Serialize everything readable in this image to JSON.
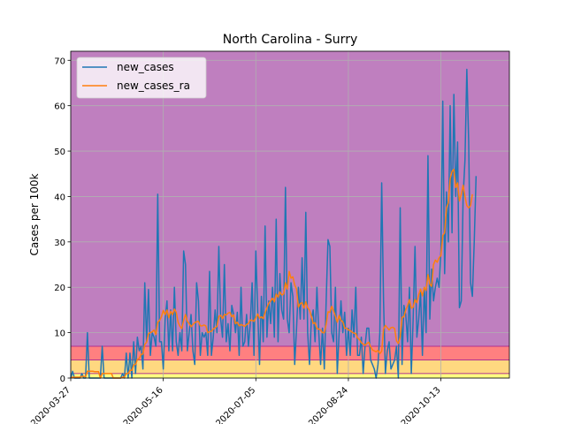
{
  "chart_data": {
    "type": "line",
    "title": "North Carolina - Surry",
    "xlabel": "",
    "ylabel": "Cases per 100k",
    "x_start": "2020-03-27",
    "x_end": "2020-11-05",
    "xlim": [
      "2020-03-27",
      "2020-11-19"
    ],
    "ylim": [
      0,
      72
    ],
    "yticks": [
      0,
      10,
      20,
      30,
      40,
      50,
      60,
      70
    ],
    "xticks": [
      "2020-03-27",
      "2020-05-16",
      "2020-07-05",
      "2020-08-24",
      "2020-10-13"
    ],
    "grid": true,
    "legend": "top-left",
    "background_bands": [
      {
        "from": 0,
        "to": 1,
        "color": "#ffff80"
      },
      {
        "from": 1,
        "to": 4,
        "color": "#ffd880"
      },
      {
        "from": 4,
        "to": 7,
        "color": "#ff8080"
      },
      {
        "from": 7,
        "to": 72,
        "color": "#bf7fbf"
      }
    ],
    "series": [
      {
        "name": "new_cases",
        "color": "#1f77b4",
        "values": [
          0,
          1.5,
          0,
          0,
          0,
          0,
          1,
          0,
          0,
          10,
          0,
          0,
          0,
          0,
          0,
          0,
          0,
          7,
          0,
          0,
          0,
          0,
          0,
          0,
          0,
          0,
          0,
          0,
          1,
          0,
          5.5,
          0,
          5.5,
          0,
          8,
          1,
          9,
          6,
          7,
          2,
          21,
          8,
          19.5,
          5,
          10,
          9,
          7,
          40.5,
          8,
          8,
          2,
          13,
          17,
          6,
          15,
          6,
          20,
          8,
          5,
          10,
          6,
          28,
          25,
          6,
          10,
          14,
          6,
          3,
          21,
          17,
          5,
          10,
          9,
          10,
          5,
          23.5,
          5,
          9,
          15,
          10,
          29,
          13,
          9,
          25,
          8,
          12,
          6,
          16,
          14,
          10,
          14.5,
          5,
          20,
          7,
          8,
          14,
          7,
          12,
          21,
          5,
          28,
          15,
          3,
          18,
          8,
          33.5,
          9,
          17,
          12,
          20,
          9,
          35,
          8,
          23,
          15,
          13,
          42,
          13,
          10,
          21,
          18,
          3,
          11,
          20,
          13,
          26.5,
          13,
          36.5,
          10,
          3,
          13,
          15,
          8,
          20,
          10,
          3,
          11,
          2,
          17,
          30.5,
          29,
          10,
          8,
          20,
          1,
          10,
          17,
          10,
          14.5,
          5,
          11,
          5,
          15,
          9,
          20,
          5,
          5,
          9,
          1,
          7,
          11,
          11,
          4,
          3,
          2,
          0,
          3,
          10,
          43,
          17,
          1,
          6,
          8,
          2,
          3,
          4,
          7,
          0,
          37.5,
          3,
          16,
          14,
          8,
          20,
          1,
          13,
          29,
          9,
          13,
          19,
          5,
          20,
          10,
          49,
          13,
          24,
          17,
          20,
          22,
          20,
          28,
          61,
          23,
          41,
          30,
          60,
          32,
          62.5,
          40,
          52,
          15.5,
          17,
          40,
          48,
          68,
          52,
          21,
          18,
          30,
          44.5
        ]
      },
      {
        "name": "new_cases_ra",
        "color": "#ff7f0e",
        "values": [
          0,
          0.2,
          0.2,
          0.2,
          0.2,
          0.2,
          0.4,
          0.4,
          0.3,
          1.5,
          1.5,
          1.5,
          1.5,
          1.4,
          1.4,
          1.4,
          0,
          1,
          1,
          1,
          1,
          1,
          1,
          0,
          0,
          0,
          0,
          0,
          0.2,
          0.2,
          1,
          1,
          1.7,
          1.7,
          2.9,
          3,
          4.1,
          4.3,
          5.2,
          5.3,
          7.4,
          7.9,
          9.8,
          10,
          10.2,
          10.6,
          9.6,
          12.3,
          12.7,
          13.5,
          14.9,
          14,
          15,
          13.3,
          14.7,
          14,
          15.2,
          14.5,
          12.3,
          11.4,
          10.9,
          12.7,
          14,
          12.5,
          12,
          11.3,
          11.8,
          12.2,
          12.4,
          12.5,
          11.5,
          11.5,
          11.7,
          11.5,
          10,
          10.2,
          10.3,
          10.8,
          11.1,
          11.4,
          13.6,
          13.8,
          13.1,
          14,
          13.9,
          14.3,
          14.5,
          13.5,
          13.9,
          12,
          12.3,
          11.5,
          11.8,
          11.6,
          11.4,
          11.8,
          12,
          12.8,
          12.7,
          12.5,
          13.3,
          14.1,
          13.2,
          13.5,
          13.1,
          14.4,
          15.5,
          16.5,
          17,
          17.6,
          16.8,
          18.5,
          17.8,
          19,
          18.3,
          18.5,
          21,
          19.6,
          23.5,
          22,
          22.3,
          20.5,
          19.6,
          15.6,
          16.4,
          16.6,
          15.4,
          16.8,
          15.5,
          15,
          13.6,
          12,
          12.2,
          10.9,
          10.8,
          10.6,
          10,
          10,
          11.8,
          14.6,
          14.5,
          15.8,
          14.8,
          13.6,
          12.3,
          13.8,
          12.7,
          12.4,
          11,
          11,
          10.6,
          10.5,
          10.1,
          9.9,
          9.8,
          8.8,
          8.5,
          7.8,
          7.5,
          7.2,
          7.6,
          7.9,
          6.9,
          6.2,
          6,
          5.8,
          6.1,
          5.4,
          5.9,
          10.8,
          11.6,
          11.1,
          10.6,
          11.1,
          11.2,
          10.9,
          8.2,
          7.6,
          9.1,
          13.4,
          13.5,
          15,
          16,
          17.3,
          15.4,
          15.6,
          17.3,
          16.6,
          18.4,
          19.6,
          18.1,
          20,
          19.3,
          22.8,
          20.7,
          20.2,
          25,
          26,
          25.5,
          26.5,
          27,
          31.4,
          32,
          37.5,
          38.6,
          44,
          45.5,
          46,
          42,
          43,
          39,
          40.5,
          42.5,
          40,
          38,
          37.5,
          38,
          40.5
        ]
      }
    ]
  }
}
